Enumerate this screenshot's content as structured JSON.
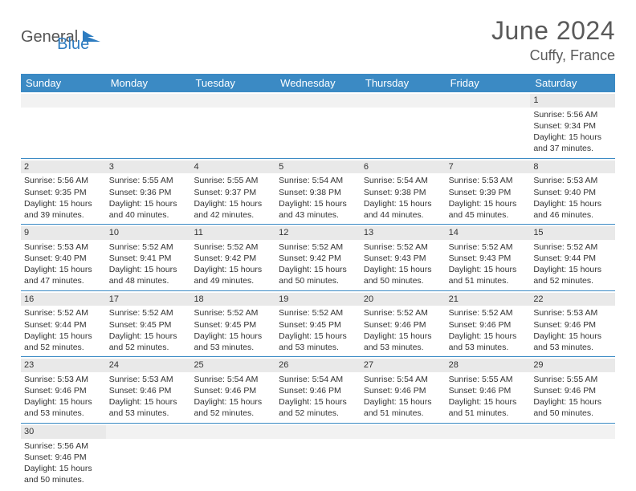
{
  "logo": {
    "text1": "General",
    "text2": "Blue"
  },
  "title": "June 2024",
  "location": "Cuffy, France",
  "weekdays": [
    "Sunday",
    "Monday",
    "Tuesday",
    "Wednesday",
    "Thursday",
    "Friday",
    "Saturday"
  ],
  "colors": {
    "header_bar": "#3b8ac4",
    "header_text": "#ffffff",
    "daynum_bg": "#e9e9e9",
    "border": "#3b8ac4",
    "title_text": "#5a5a5a",
    "body_text": "#333333",
    "logo_blue": "#2e7cc0",
    "background": "#ffffff"
  },
  "typography": {
    "title_fontsize": 32,
    "location_fontsize": 18,
    "weekday_fontsize": 13,
    "cell_fontsize": 10.5,
    "daynum_fontsize": 11,
    "font_family": "Arial"
  },
  "layout": {
    "columns": 7,
    "rows": 6,
    "cell_min_height": 78
  },
  "weeks": [
    [
      {
        "blank": true
      },
      {
        "blank": true
      },
      {
        "blank": true
      },
      {
        "blank": true
      },
      {
        "blank": true
      },
      {
        "blank": true
      },
      {
        "num": "1",
        "sunrise": "Sunrise: 5:56 AM",
        "sunset": "Sunset: 9:34 PM",
        "daylight": "Daylight: 15 hours and 37 minutes."
      }
    ],
    [
      {
        "num": "2",
        "sunrise": "Sunrise: 5:56 AM",
        "sunset": "Sunset: 9:35 PM",
        "daylight": "Daylight: 15 hours and 39 minutes."
      },
      {
        "num": "3",
        "sunrise": "Sunrise: 5:55 AM",
        "sunset": "Sunset: 9:36 PM",
        "daylight": "Daylight: 15 hours and 40 minutes."
      },
      {
        "num": "4",
        "sunrise": "Sunrise: 5:55 AM",
        "sunset": "Sunset: 9:37 PM",
        "daylight": "Daylight: 15 hours and 42 minutes."
      },
      {
        "num": "5",
        "sunrise": "Sunrise: 5:54 AM",
        "sunset": "Sunset: 9:38 PM",
        "daylight": "Daylight: 15 hours and 43 minutes."
      },
      {
        "num": "6",
        "sunrise": "Sunrise: 5:54 AM",
        "sunset": "Sunset: 9:38 PM",
        "daylight": "Daylight: 15 hours and 44 minutes."
      },
      {
        "num": "7",
        "sunrise": "Sunrise: 5:53 AM",
        "sunset": "Sunset: 9:39 PM",
        "daylight": "Daylight: 15 hours and 45 minutes."
      },
      {
        "num": "8",
        "sunrise": "Sunrise: 5:53 AM",
        "sunset": "Sunset: 9:40 PM",
        "daylight": "Daylight: 15 hours and 46 minutes."
      }
    ],
    [
      {
        "num": "9",
        "sunrise": "Sunrise: 5:53 AM",
        "sunset": "Sunset: 9:40 PM",
        "daylight": "Daylight: 15 hours and 47 minutes."
      },
      {
        "num": "10",
        "sunrise": "Sunrise: 5:52 AM",
        "sunset": "Sunset: 9:41 PM",
        "daylight": "Daylight: 15 hours and 48 minutes."
      },
      {
        "num": "11",
        "sunrise": "Sunrise: 5:52 AM",
        "sunset": "Sunset: 9:42 PM",
        "daylight": "Daylight: 15 hours and 49 minutes."
      },
      {
        "num": "12",
        "sunrise": "Sunrise: 5:52 AM",
        "sunset": "Sunset: 9:42 PM",
        "daylight": "Daylight: 15 hours and 50 minutes."
      },
      {
        "num": "13",
        "sunrise": "Sunrise: 5:52 AM",
        "sunset": "Sunset: 9:43 PM",
        "daylight": "Daylight: 15 hours and 50 minutes."
      },
      {
        "num": "14",
        "sunrise": "Sunrise: 5:52 AM",
        "sunset": "Sunset: 9:43 PM",
        "daylight": "Daylight: 15 hours and 51 minutes."
      },
      {
        "num": "15",
        "sunrise": "Sunrise: 5:52 AM",
        "sunset": "Sunset: 9:44 PM",
        "daylight": "Daylight: 15 hours and 52 minutes."
      }
    ],
    [
      {
        "num": "16",
        "sunrise": "Sunrise: 5:52 AM",
        "sunset": "Sunset: 9:44 PM",
        "daylight": "Daylight: 15 hours and 52 minutes."
      },
      {
        "num": "17",
        "sunrise": "Sunrise: 5:52 AM",
        "sunset": "Sunset: 9:45 PM",
        "daylight": "Daylight: 15 hours and 52 minutes."
      },
      {
        "num": "18",
        "sunrise": "Sunrise: 5:52 AM",
        "sunset": "Sunset: 9:45 PM",
        "daylight": "Daylight: 15 hours and 53 minutes."
      },
      {
        "num": "19",
        "sunrise": "Sunrise: 5:52 AM",
        "sunset": "Sunset: 9:45 PM",
        "daylight": "Daylight: 15 hours and 53 minutes."
      },
      {
        "num": "20",
        "sunrise": "Sunrise: 5:52 AM",
        "sunset": "Sunset: 9:46 PM",
        "daylight": "Daylight: 15 hours and 53 minutes."
      },
      {
        "num": "21",
        "sunrise": "Sunrise: 5:52 AM",
        "sunset": "Sunset: 9:46 PM",
        "daylight": "Daylight: 15 hours and 53 minutes."
      },
      {
        "num": "22",
        "sunrise": "Sunrise: 5:53 AM",
        "sunset": "Sunset: 9:46 PM",
        "daylight": "Daylight: 15 hours and 53 minutes."
      }
    ],
    [
      {
        "num": "23",
        "sunrise": "Sunrise: 5:53 AM",
        "sunset": "Sunset: 9:46 PM",
        "daylight": "Daylight: 15 hours and 53 minutes."
      },
      {
        "num": "24",
        "sunrise": "Sunrise: 5:53 AM",
        "sunset": "Sunset: 9:46 PM",
        "daylight": "Daylight: 15 hours and 53 minutes."
      },
      {
        "num": "25",
        "sunrise": "Sunrise: 5:54 AM",
        "sunset": "Sunset: 9:46 PM",
        "daylight": "Daylight: 15 hours and 52 minutes."
      },
      {
        "num": "26",
        "sunrise": "Sunrise: 5:54 AM",
        "sunset": "Sunset: 9:46 PM",
        "daylight": "Daylight: 15 hours and 52 minutes."
      },
      {
        "num": "27",
        "sunrise": "Sunrise: 5:54 AM",
        "sunset": "Sunset: 9:46 PM",
        "daylight": "Daylight: 15 hours and 51 minutes."
      },
      {
        "num": "28",
        "sunrise": "Sunrise: 5:55 AM",
        "sunset": "Sunset: 9:46 PM",
        "daylight": "Daylight: 15 hours and 51 minutes."
      },
      {
        "num": "29",
        "sunrise": "Sunrise: 5:55 AM",
        "sunset": "Sunset: 9:46 PM",
        "daylight": "Daylight: 15 hours and 50 minutes."
      }
    ],
    [
      {
        "num": "30",
        "sunrise": "Sunrise: 5:56 AM",
        "sunset": "Sunset: 9:46 PM",
        "daylight": "Daylight: 15 hours and 50 minutes."
      },
      {
        "blank": true
      },
      {
        "blank": true
      },
      {
        "blank": true
      },
      {
        "blank": true
      },
      {
        "blank": true
      },
      {
        "blank": true
      }
    ]
  ]
}
